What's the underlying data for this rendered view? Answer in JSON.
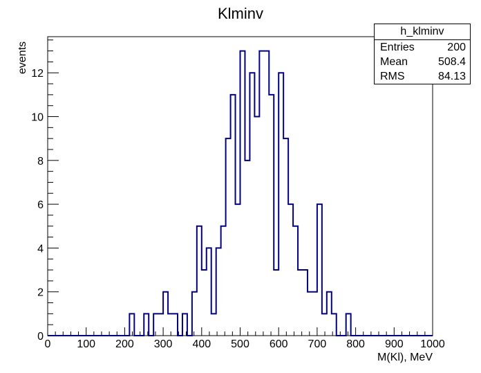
{
  "chart_data": {
    "type": "histogram",
    "title": "Klminv",
    "xlabel": "M(Kl), MeV",
    "ylabel": "events",
    "xlim": [
      0,
      1000
    ],
    "ylim": [
      0,
      13.65
    ],
    "bin_width": 12.5,
    "x_ticks": [
      0,
      100,
      200,
      300,
      400,
      500,
      600,
      700,
      800,
      900,
      1000
    ],
    "y_ticks": [
      0,
      2,
      4,
      6,
      8,
      10,
      12
    ],
    "line_color": "#000080",
    "bins": [
      {
        "x": 0,
        "count": 0
      },
      {
        "x": 12.5,
        "count": 0
      },
      {
        "x": 25,
        "count": 0
      },
      {
        "x": 37.5,
        "count": 0
      },
      {
        "x": 50,
        "count": 0
      },
      {
        "x": 62.5,
        "count": 0
      },
      {
        "x": 75,
        "count": 0
      },
      {
        "x": 87.5,
        "count": 0
      },
      {
        "x": 100,
        "count": 0
      },
      {
        "x": 112.5,
        "count": 0
      },
      {
        "x": 125,
        "count": 0
      },
      {
        "x": 137.5,
        "count": 0
      },
      {
        "x": 150,
        "count": 0
      },
      {
        "x": 162.5,
        "count": 0
      },
      {
        "x": 175,
        "count": 0
      },
      {
        "x": 187.5,
        "count": 0
      },
      {
        "x": 200,
        "count": 0
      },
      {
        "x": 212.5,
        "count": 1
      },
      {
        "x": 225,
        "count": 0
      },
      {
        "x": 237.5,
        "count": 0
      },
      {
        "x": 250,
        "count": 1
      },
      {
        "x": 262.5,
        "count": 0
      },
      {
        "x": 275,
        "count": 1
      },
      {
        "x": 287.5,
        "count": 1
      },
      {
        "x": 300,
        "count": 2
      },
      {
        "x": 312.5,
        "count": 1
      },
      {
        "x": 325,
        "count": 1
      },
      {
        "x": 337.5,
        "count": 0
      },
      {
        "x": 350,
        "count": 1
      },
      {
        "x": 362.5,
        "count": 0
      },
      {
        "x": 375,
        "count": 2
      },
      {
        "x": 387.5,
        "count": 5
      },
      {
        "x": 400,
        "count": 3
      },
      {
        "x": 412.5,
        "count": 4
      },
      {
        "x": 425,
        "count": 1
      },
      {
        "x": 437.5,
        "count": 4
      },
      {
        "x": 450,
        "count": 5
      },
      {
        "x": 462.5,
        "count": 9
      },
      {
        "x": 475,
        "count": 11
      },
      {
        "x": 487.5,
        "count": 6
      },
      {
        "x": 500,
        "count": 13
      },
      {
        "x": 512.5,
        "count": 8
      },
      {
        "x": 525,
        "count": 12
      },
      {
        "x": 537.5,
        "count": 10
      },
      {
        "x": 550,
        "count": 13
      },
      {
        "x": 562.5,
        "count": 13
      },
      {
        "x": 575,
        "count": 11
      },
      {
        "x": 587.5,
        "count": 3
      },
      {
        "x": 600,
        "count": 12
      },
      {
        "x": 612.5,
        "count": 9
      },
      {
        "x": 625,
        "count": 6
      },
      {
        "x": 637.5,
        "count": 5
      },
      {
        "x": 650,
        "count": 3
      },
      {
        "x": 662.5,
        "count": 3
      },
      {
        "x": 675,
        "count": 2
      },
      {
        "x": 687.5,
        "count": 2
      },
      {
        "x": 700,
        "count": 6
      },
      {
        "x": 712.5,
        "count": 1
      },
      {
        "x": 725,
        "count": 2
      },
      {
        "x": 737.5,
        "count": 1
      },
      {
        "x": 750,
        "count": 0
      },
      {
        "x": 762.5,
        "count": 0
      },
      {
        "x": 775,
        "count": 1
      },
      {
        "x": 787.5,
        "count": 0
      },
      {
        "x": 800,
        "count": 0
      },
      {
        "x": 812.5,
        "count": 0
      },
      {
        "x": 825,
        "count": 0
      },
      {
        "x": 837.5,
        "count": 0
      },
      {
        "x": 850,
        "count": 0
      },
      {
        "x": 862.5,
        "count": 0
      },
      {
        "x": 875,
        "count": 0
      },
      {
        "x": 887.5,
        "count": 0
      },
      {
        "x": 900,
        "count": 0
      },
      {
        "x": 912.5,
        "count": 0
      },
      {
        "x": 925,
        "count": 0
      },
      {
        "x": 937.5,
        "count": 0
      },
      {
        "x": 950,
        "count": 0
      },
      {
        "x": 962.5,
        "count": 0
      },
      {
        "x": 975,
        "count": 0
      },
      {
        "x": 987.5,
        "count": 0
      }
    ],
    "stats": {
      "name": "h_klminv",
      "entries_label": "Entries",
      "entries": "200",
      "mean_label": "Mean",
      "mean": "508.4",
      "rms_label": "RMS",
      "rms": "84.13"
    }
  }
}
